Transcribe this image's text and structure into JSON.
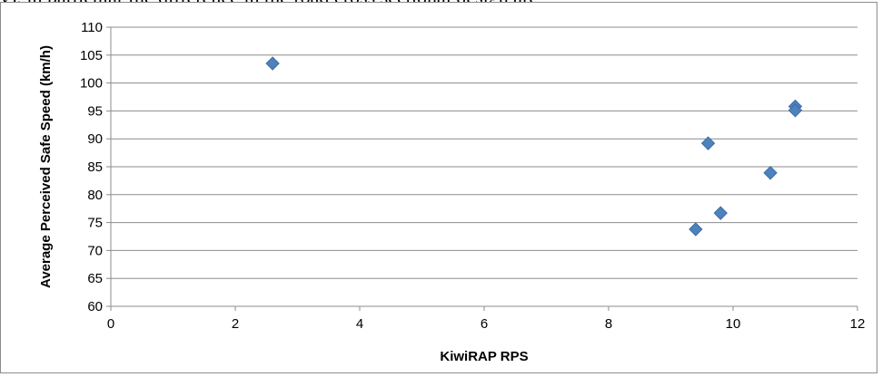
{
  "page": {
    "top_text": "y), in particular the difference in the road cross sectional design are"
  },
  "chart_data": {
    "type": "scatter",
    "title": "",
    "xlabel": "KiwiRAP RPS",
    "ylabel": "Average Perceived Safe Speed (km/h)",
    "xlim": [
      0,
      12
    ],
    "ylim": [
      60,
      110
    ],
    "x_ticks": [
      0,
      2,
      4,
      6,
      8,
      10,
      12
    ],
    "y_ticks": [
      60,
      65,
      70,
      75,
      80,
      85,
      90,
      95,
      100,
      105,
      110
    ],
    "grid": "horizontal",
    "legend": "none",
    "marker": "diamond",
    "color": "#4f81bd",
    "series": [
      {
        "points": [
          {
            "x": 2.6,
            "y": 103.5
          },
          {
            "x": 9.4,
            "y": 73.8
          },
          {
            "x": 9.6,
            "y": 89.2
          },
          {
            "x": 9.8,
            "y": 76.7
          },
          {
            "x": 10.6,
            "y": 83.9
          },
          {
            "x": 11.0,
            "y": 95.8
          },
          {
            "x": 11.0,
            "y": 95.1
          }
        ]
      }
    ]
  }
}
